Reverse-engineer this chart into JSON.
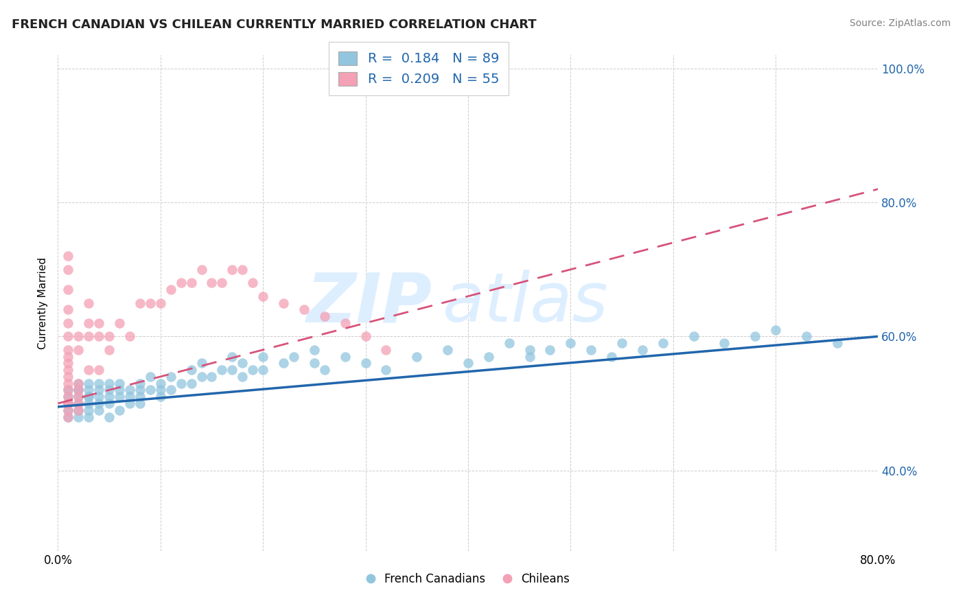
{
  "title": "FRENCH CANADIAN VS CHILEAN CURRENTLY MARRIED CORRELATION CHART",
  "source": "Source: ZipAtlas.com",
  "ylabel": "Currently Married",
  "xlim": [
    0.0,
    80.0
  ],
  "ylim": [
    28.0,
    102.0
  ],
  "blue_color": "#92c5de",
  "blue_dark": "#2166ac",
  "pink_color": "#f4a0b5",
  "pink_dark": "#d6537a",
  "r_blue": 0.184,
  "n_blue": 89,
  "r_pink": 0.209,
  "n_pink": 55,
  "legend_label1": "French Canadians",
  "legend_label2": "Chileans",
  "fc_x": [
    1,
    1,
    1,
    1,
    1,
    2,
    2,
    2,
    2,
    2,
    2,
    2,
    3,
    3,
    3,
    3,
    3,
    3,
    3,
    4,
    4,
    4,
    4,
    4,
    5,
    5,
    5,
    5,
    5,
    6,
    6,
    6,
    6,
    7,
    7,
    7,
    8,
    8,
    8,
    8,
    9,
    9,
    10,
    10,
    10,
    11,
    11,
    12,
    13,
    13,
    14,
    14,
    15,
    16,
    17,
    17,
    18,
    18,
    19,
    20,
    20,
    22,
    23,
    25,
    25,
    26,
    28,
    30,
    32,
    35,
    38,
    40,
    42,
    44,
    46,
    46,
    48,
    50,
    52,
    54,
    55,
    57,
    59,
    62,
    65,
    68,
    70,
    73,
    76
  ],
  "fc_y": [
    50,
    51,
    49,
    52,
    48,
    52,
    50,
    48,
    51,
    53,
    49,
    52,
    51,
    50,
    52,
    49,
    53,
    51,
    48,
    52,
    50,
    53,
    51,
    49,
    52,
    50,
    51,
    53,
    48,
    52,
    51,
    49,
    53,
    51,
    52,
    50,
    53,
    51,
    52,
    50,
    54,
    52,
    53,
    51,
    52,
    54,
    52,
    53,
    55,
    53,
    54,
    56,
    54,
    55,
    57,
    55,
    56,
    54,
    55,
    57,
    55,
    56,
    57,
    58,
    56,
    55,
    57,
    56,
    55,
    57,
    58,
    56,
    57,
    59,
    58,
    57,
    58,
    59,
    58,
    57,
    59,
    58,
    59,
    60,
    59,
    60,
    61,
    60,
    59
  ],
  "ch_x": [
    1,
    1,
    1,
    1,
    1,
    1,
    1,
    1,
    1,
    1,
    1,
    1,
    1,
    1,
    1,
    1,
    1,
    1,
    2,
    2,
    2,
    2,
    2,
    2,
    2,
    3,
    3,
    3,
    3,
    4,
    4,
    4,
    5,
    5,
    6,
    7,
    8,
    9,
    10,
    11,
    12,
    13,
    14,
    15,
    16,
    17,
    18,
    19,
    20,
    22,
    24,
    26,
    28,
    30,
    32
  ],
  "ch_y": [
    50,
    51,
    49,
    52,
    53,
    48,
    50,
    55,
    54,
    56,
    57,
    58,
    60,
    62,
    64,
    67,
    70,
    72,
    50,
    51,
    49,
    52,
    53,
    58,
    60,
    55,
    60,
    62,
    65,
    60,
    62,
    55,
    58,
    60,
    62,
    60,
    65,
    65,
    65,
    67,
    68,
    68,
    70,
    68,
    68,
    70,
    70,
    68,
    66,
    65,
    64,
    63,
    62,
    60,
    58
  ],
  "blue_line_x": [
    0,
    80
  ],
  "blue_line_y": [
    49.5,
    60.0
  ],
  "pink_line_x": [
    0,
    80
  ],
  "pink_line_y": [
    50.0,
    82.0
  ]
}
